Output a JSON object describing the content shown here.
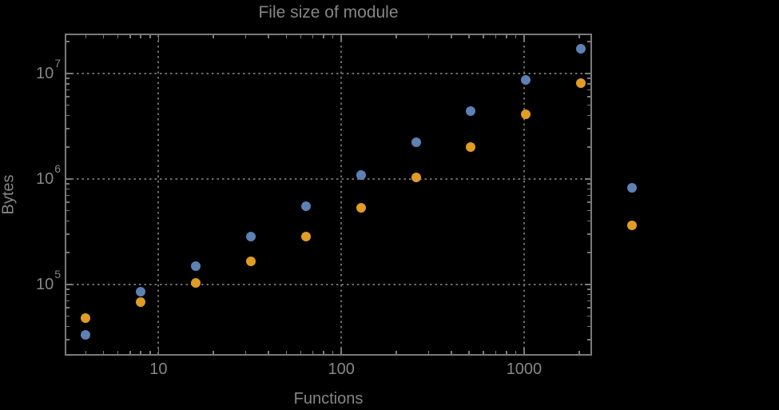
{
  "colors": {
    "background": "#000000",
    "text": "#868686",
    "frame": "#7a7a7a",
    "grid": "#6c6c6c",
    "series_blue": "#5E81B5",
    "series_orange": "#E19C24"
  },
  "chart_data": {
    "type": "scatter",
    "title": "File size of module",
    "xlabel": "Functions",
    "ylabel": "Bytes",
    "xscale": "log",
    "yscale": "log",
    "grid": true,
    "grid_style": "dotted",
    "legend": "none",
    "xlim": [
      3.1,
      2330
    ],
    "ylim": [
      21500,
      23500000
    ],
    "x_major_ticks": [
      {
        "value": 10,
        "label": "10"
      },
      {
        "value": 100,
        "label": "100"
      },
      {
        "value": 1000,
        "label": "1000"
      }
    ],
    "y_major_ticks": [
      {
        "value": 100000,
        "label": "10",
        "exponent": "5"
      },
      {
        "value": 1000000,
        "label": "10",
        "exponent": "6"
      },
      {
        "value": 10000000,
        "label": "10",
        "exponent": "7"
      }
    ],
    "series": [
      {
        "name": "blue-series",
        "color": "#5E81B5",
        "x": [
          4,
          8,
          16,
          32,
          64,
          128,
          256,
          512,
          1024,
          2048,
          3900
        ],
        "y": [
          33000,
          86000,
          150000,
          285000,
          550000,
          1090000,
          2230000,
          4400000,
          8700000,
          17200000,
          820000
        ]
      },
      {
        "name": "orange-series",
        "color": "#E19C24",
        "x": [
          4,
          8,
          16,
          32,
          64,
          128,
          256,
          512,
          1024,
          2048,
          3900
        ],
        "y": [
          48000,
          68000,
          104000,
          166000,
          285000,
          530000,
          1040000,
          2010000,
          4100000,
          8100000,
          360000
        ]
      }
    ]
  }
}
